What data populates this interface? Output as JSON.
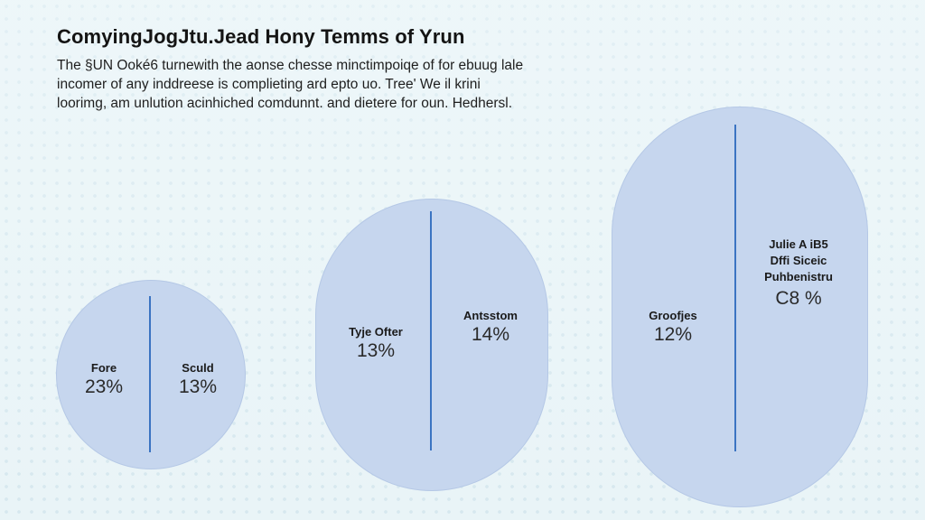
{
  "title": "ComyingJogJtu.Jead Hony Temms of Yrun",
  "intro": "The §UN Ooké6 turnewith the aonse chesse minctimpoiqe of for ebuug lale incomer of any inddreese is complieting ard epto uo. Tree' We il krini loorimg, am unlution acinhiched comdunnt. and dietere for oun. Hedhersl.",
  "shapes": [
    {
      "segments": [
        {
          "label": "Fore",
          "value": "23%"
        },
        {
          "label": "Sculd",
          "value": "13%"
        }
      ]
    },
    {
      "segments": [
        {
          "label": "Tyje Ofter",
          "value": "13%"
        },
        {
          "label": "Antsstom",
          "value": "14%"
        }
      ]
    },
    {
      "segments": [
        {
          "label": "Groofjes",
          "value": "12%"
        },
        {
          "label_lines": [
            "Julie A iB5",
            "Dffi Siceic",
            "Puhbenistru"
          ],
          "value": "C8 %"
        }
      ]
    }
  ],
  "colors": {
    "shape_fill": "#c6d6ee",
    "divider": "#3b74c2",
    "background": "#e9f4f7"
  }
}
